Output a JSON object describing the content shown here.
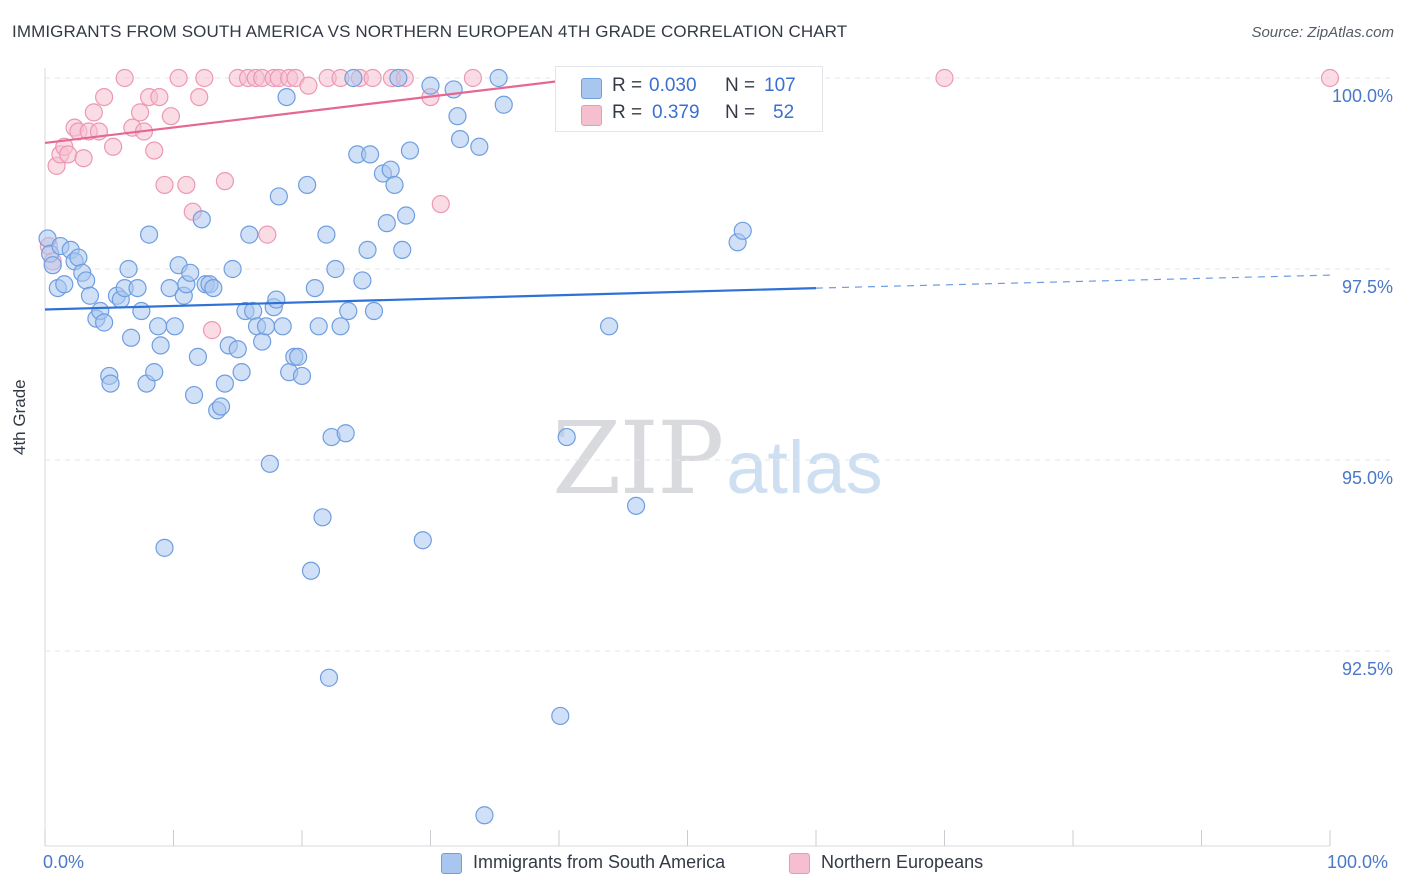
{
  "header": {
    "title": "IMMIGRANTS FROM SOUTH AMERICA VS NORTHERN EUROPEAN 4TH GRADE CORRELATION CHART",
    "source": "Source: ZipAtlas.com"
  },
  "watermark": {
    "zip": "ZIP",
    "atlas": "atlas"
  },
  "colors": {
    "blue_fill": "#a9c6ef",
    "blue_stroke": "#6f9ee0",
    "blue_line": "#2f72d6",
    "pink_fill": "#f5bfd0",
    "pink_stroke": "#ec98b4",
    "pink_line": "#e46892",
    "grid": "#e3e6ea"
  },
  "stats": {
    "r_label": "R =",
    "n_label": "N =",
    "blue": {
      "r": "0.030",
      "n": "107"
    },
    "pink": {
      "r": "0.379",
      "n": "52"
    }
  },
  "legend": {
    "blue": "Immigrants from South America",
    "pink": "Northern Europeans"
  },
  "chart_data": {
    "type": "scatter",
    "title": "IMMIGRANTS FROM SOUTH AMERICA VS NORTHERN EUROPEAN 4TH GRADE CORRELATION CHART",
    "xlabel": "",
    "ylabel": "4th Grade",
    "xlim": [
      0,
      100
    ],
    "ylim": [
      89.8,
      100.35
    ],
    "x_tick_labels": [
      "0.0%",
      "100.0%"
    ],
    "y_ticks": [
      100.0,
      97.5,
      95.0,
      92.5
    ],
    "y_tick_labels": [
      "100.0%",
      "97.5%",
      "95.0%",
      "92.5%"
    ],
    "grid": true,
    "series": [
      {
        "name": "Immigrants from South America",
        "color": "blue",
        "r": 0.03,
        "n": 107,
        "trend": {
          "x_start": 0,
          "x_end": 60,
          "y_start": 96.97,
          "y_end": 97.25,
          "dashed_to_x": 100,
          "dashed_end_y": 97.42
        },
        "points": [
          [
            0.2,
            97.9
          ],
          [
            0.4,
            97.7
          ],
          [
            0.6,
            97.55
          ],
          [
            1.0,
            97.25
          ],
          [
            1.2,
            97.8
          ],
          [
            1.5,
            97.3
          ],
          [
            2.0,
            97.75
          ],
          [
            2.3,
            97.6
          ],
          [
            2.6,
            97.65
          ],
          [
            2.9,
            97.45
          ],
          [
            3.2,
            97.35
          ],
          [
            3.5,
            97.15
          ],
          [
            4.0,
            96.85
          ],
          [
            4.3,
            96.95
          ],
          [
            4.6,
            96.8
          ],
          [
            5.0,
            96.1
          ],
          [
            5.1,
            96.0
          ],
          [
            5.6,
            97.15
          ],
          [
            5.9,
            97.1
          ],
          [
            6.2,
            97.25
          ],
          [
            6.5,
            97.5
          ],
          [
            6.7,
            96.6
          ],
          [
            7.2,
            97.25
          ],
          [
            7.5,
            96.95
          ],
          [
            7.9,
            96.0
          ],
          [
            8.1,
            97.95
          ],
          [
            8.5,
            96.15
          ],
          [
            8.8,
            96.75
          ],
          [
            9.0,
            96.5
          ],
          [
            9.3,
            93.85
          ],
          [
            9.7,
            97.25
          ],
          [
            10.1,
            96.75
          ],
          [
            10.4,
            97.55
          ],
          [
            10.8,
            97.15
          ],
          [
            11.0,
            97.3
          ],
          [
            11.3,
            97.45
          ],
          [
            11.6,
            95.85
          ],
          [
            11.9,
            96.35
          ],
          [
            12.2,
            98.15
          ],
          [
            12.5,
            97.3
          ],
          [
            12.8,
            97.3
          ],
          [
            13.1,
            97.25
          ],
          [
            13.4,
            95.65
          ],
          [
            13.7,
            95.7
          ],
          [
            14.0,
            96.0
          ],
          [
            14.3,
            96.5
          ],
          [
            14.6,
            97.5
          ],
          [
            15.0,
            96.45
          ],
          [
            15.3,
            96.15
          ],
          [
            15.6,
            96.95
          ],
          [
            15.9,
            97.95
          ],
          [
            16.2,
            96.95
          ],
          [
            16.5,
            96.75
          ],
          [
            16.9,
            96.55
          ],
          [
            17.2,
            96.75
          ],
          [
            17.5,
            94.95
          ],
          [
            17.8,
            97.0
          ],
          [
            18.0,
            97.1
          ],
          [
            18.2,
            98.45
          ],
          [
            18.5,
            96.75
          ],
          [
            18.8,
            99.75
          ],
          [
            19.0,
            96.15
          ],
          [
            19.4,
            96.35
          ],
          [
            19.7,
            96.35
          ],
          [
            20.0,
            96.1
          ],
          [
            20.4,
            98.6
          ],
          [
            20.7,
            93.55
          ],
          [
            21.0,
            97.25
          ],
          [
            21.3,
            96.75
          ],
          [
            21.6,
            94.25
          ],
          [
            21.9,
            97.95
          ],
          [
            22.1,
            92.15
          ],
          [
            22.3,
            95.3
          ],
          [
            22.6,
            97.5
          ],
          [
            23.0,
            96.75
          ],
          [
            23.4,
            95.35
          ],
          [
            23.6,
            96.95
          ],
          [
            24.0,
            100.0
          ],
          [
            24.3,
            99.0
          ],
          [
            24.7,
            97.35
          ],
          [
            25.1,
            97.75
          ],
          [
            25.3,
            99.0
          ],
          [
            25.6,
            96.95
          ],
          [
            26.3,
            98.75
          ],
          [
            26.6,
            98.1
          ],
          [
            26.9,
            98.8
          ],
          [
            27.2,
            98.6
          ],
          [
            27.5,
            100.0
          ],
          [
            27.8,
            97.75
          ],
          [
            28.1,
            98.2
          ],
          [
            28.4,
            99.05
          ],
          [
            29.4,
            93.95
          ],
          [
            30.0,
            99.9
          ],
          [
            31.8,
            99.85
          ],
          [
            32.1,
            99.5
          ],
          [
            32.3,
            99.2
          ],
          [
            33.8,
            99.1
          ],
          [
            34.2,
            90.35
          ],
          [
            35.3,
            100.0
          ],
          [
            35.7,
            99.65
          ],
          [
            40.1,
            91.65
          ],
          [
            40.6,
            95.3
          ],
          [
            43.9,
            96.75
          ],
          [
            46.0,
            94.4
          ],
          [
            53.9,
            97.85
          ],
          [
            54.3,
            98.0
          ]
        ]
      },
      {
        "name": "Northern Europeans",
        "color": "pink",
        "r": 0.379,
        "n": 52,
        "trend": {
          "x_start": 0,
          "x_end": 42,
          "y_start": 99.15,
          "y_end": 100.0
        },
        "points": [
          [
            0.3,
            97.8
          ],
          [
            0.6,
            97.6
          ],
          [
            0.9,
            98.85
          ],
          [
            1.2,
            99.0
          ],
          [
            1.5,
            99.1
          ],
          [
            1.8,
            99.0
          ],
          [
            2.3,
            99.35
          ],
          [
            2.6,
            99.3
          ],
          [
            3.0,
            98.95
          ],
          [
            3.4,
            99.3
          ],
          [
            3.8,
            99.55
          ],
          [
            4.2,
            99.3
          ],
          [
            4.6,
            99.75
          ],
          [
            5.3,
            99.1
          ],
          [
            6.2,
            100.0
          ],
          [
            6.8,
            99.35
          ],
          [
            7.4,
            99.55
          ],
          [
            7.7,
            99.3
          ],
          [
            8.1,
            99.75
          ],
          [
            8.5,
            99.05
          ],
          [
            8.9,
            99.75
          ],
          [
            9.3,
            98.6
          ],
          [
            9.8,
            99.5
          ],
          [
            10.4,
            100.0
          ],
          [
            11.0,
            98.6
          ],
          [
            11.5,
            98.25
          ],
          [
            12.0,
            99.75
          ],
          [
            12.4,
            100.0
          ],
          [
            13.0,
            96.7
          ],
          [
            14.0,
            98.65
          ],
          [
            15.0,
            100.0
          ],
          [
            15.8,
            100.0
          ],
          [
            16.4,
            100.0
          ],
          [
            16.9,
            100.0
          ],
          [
            17.3,
            97.95
          ],
          [
            17.8,
            100.0
          ],
          [
            18.2,
            100.0
          ],
          [
            19.0,
            100.0
          ],
          [
            19.5,
            100.0
          ],
          [
            20.5,
            99.9
          ],
          [
            22.0,
            100.0
          ],
          [
            23.0,
            100.0
          ],
          [
            24.5,
            100.0
          ],
          [
            25.5,
            100.0
          ],
          [
            27.0,
            100.0
          ],
          [
            28.0,
            100.0
          ],
          [
            30.0,
            99.75
          ],
          [
            30.8,
            98.35
          ],
          [
            33.3,
            100.0
          ],
          [
            56.0,
            100.0
          ],
          [
            70.0,
            100.0
          ],
          [
            100.0,
            100.0
          ]
        ]
      }
    ]
  }
}
